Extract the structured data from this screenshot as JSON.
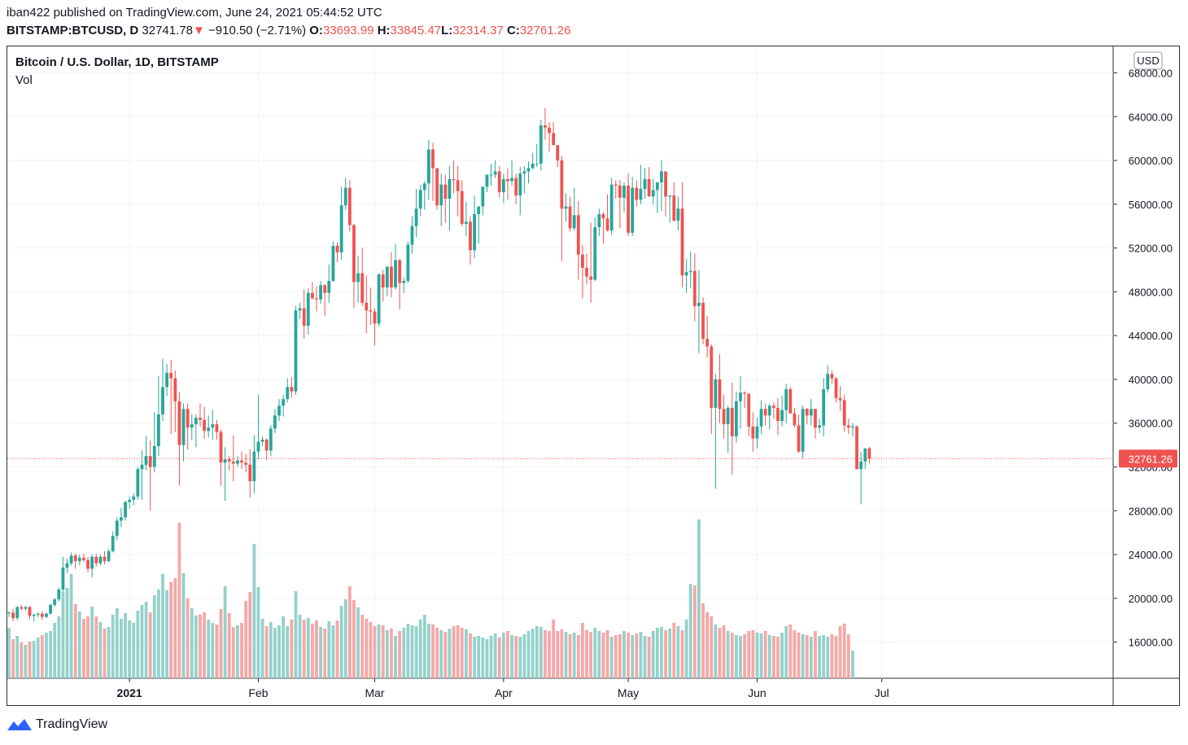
{
  "header": {
    "publisher": "iban422",
    "published_text": "published on TradingView.com, June 24, 2021 05:44:52 UTC",
    "symbol": "BITSTAMP:BTCUSD, D",
    "last": "32741.78",
    "change_arrow": "▼",
    "change": "−910.50 (−2.71%)",
    "o_label": "O:",
    "o": "33693.99",
    "h_label": "H:",
    "h": "33845.47",
    "l_label": "L:",
    "l": "32314.37",
    "c_label": "C:",
    "c": "32761.26"
  },
  "chart_data": {
    "type": "candlestick",
    "title": "Bitcoin / U.S. Dollar, 1D, BITSTAMP",
    "volume_label": "Vol",
    "currency": "USD",
    "ylim": [
      12500,
      69500
    ],
    "y_ticks": [
      "68000.00",
      "64000.00",
      "60000.00",
      "56000.00",
      "52000.00",
      "48000.00",
      "44000.00",
      "40000.00",
      "36000.00",
      "32000.00",
      "28000.00",
      "24000.00",
      "20000.00",
      "16000.00"
    ],
    "x_ticks": [
      "2021",
      "Feb",
      "Mar",
      "Apr",
      "May",
      "Jun",
      "Jul"
    ],
    "last_price_label": "32761.26",
    "last_price": 32761.26,
    "series_start": "2020-12-03",
    "candles": [
      [
        18650,
        18800,
        18300,
        18700
      ],
      [
        18700,
        19000,
        17900,
        18200
      ],
      [
        18200,
        19300,
        18000,
        19200
      ],
      [
        19200,
        19400,
        18900,
        19050
      ],
      [
        19050,
        19300,
        18900,
        19200
      ],
      [
        19200,
        19300,
        18100,
        18400
      ],
      [
        18400,
        18600,
        17900,
        18500
      ],
      [
        18500,
        18700,
        18300,
        18600
      ],
      [
        18600,
        18800,
        18000,
        18300
      ],
      [
        18300,
        18700,
        18200,
        18600
      ],
      [
        18600,
        19500,
        18500,
        19400
      ],
      [
        19400,
        20000,
        19200,
        19900
      ],
      [
        19900,
        21000,
        19700,
        20800
      ],
      [
        20800,
        23800,
        20600,
        22800
      ],
      [
        22800,
        23600,
        22300,
        23200
      ],
      [
        23200,
        24200,
        23000,
        23900
      ],
      [
        23900,
        24100,
        22700,
        23400
      ],
      [
        23400,
        24000,
        23000,
        23700
      ],
      [
        23700,
        24100,
        23300,
        23500
      ],
      [
        23500,
        23800,
        22400,
        22700
      ],
      [
        22700,
        24000,
        21900,
        23800
      ],
      [
        23800,
        24100,
        22900,
        23200
      ],
      [
        23200,
        24000,
        23000,
        23800
      ],
      [
        23800,
        24300,
        23100,
        23400
      ],
      [
        23400,
        24500,
        23300,
        24300
      ],
      [
        24300,
        26100,
        24200,
        25700
      ],
      [
        25700,
        27400,
        25300,
        27100
      ],
      [
        27100,
        28300,
        26500,
        27400
      ],
      [
        27400,
        28900,
        27100,
        28800
      ],
      [
        28800,
        29300,
        28200,
        29000
      ],
      [
        29000,
        29600,
        28500,
        29300
      ],
      [
        29300,
        32000,
        29000,
        31800
      ],
      [
        31800,
        33500,
        29000,
        32200
      ],
      [
        32200,
        34800,
        31700,
        33000
      ],
      [
        33000,
        34400,
        28000,
        32000
      ],
      [
        32000,
        37000,
        31500,
        33900
      ],
      [
        33900,
        40300,
        33000,
        36800
      ],
      [
        36800,
        41900,
        36200,
        39300
      ],
      [
        39300,
        41400,
        38500,
        40600
      ],
      [
        40600,
        41800,
        35000,
        40100
      ],
      [
        40100,
        40800,
        35200,
        38000
      ],
      [
        38000,
        38800,
        30300,
        34000
      ],
      [
        34000,
        37800,
        32500,
        37300
      ],
      [
        37300,
        37800,
        33600,
        35600
      ],
      [
        35600,
        36800,
        34500,
        35900
      ],
      [
        35900,
        36800,
        33800,
        36500
      ],
      [
        36500,
        37800,
        35700,
        36300
      ],
      [
        36300,
        37500,
        34600,
        35300
      ],
      [
        35300,
        36700,
        34700,
        35600
      ],
      [
        35600,
        37200,
        34500,
        35900
      ],
      [
        35900,
        36300,
        34500,
        35200
      ],
      [
        35200,
        35400,
        30300,
        32400
      ],
      [
        32400,
        33800,
        28900,
        32700
      ],
      [
        32700,
        33000,
        31700,
        32500
      ],
      [
        32500,
        34900,
        30700,
        32300
      ],
      [
        32300,
        33000,
        32000,
        32600
      ],
      [
        32600,
        33400,
        31800,
        32400
      ],
      [
        32400,
        33200,
        31500,
        32200
      ],
      [
        32200,
        33600,
        29200,
        30700
      ],
      [
        30700,
        34900,
        29600,
        33400
      ],
      [
        33400,
        38600,
        32700,
        34300
      ],
      [
        34300,
        34800,
        33900,
        34500
      ],
      [
        34500,
        34600,
        32600,
        33500
      ],
      [
        33500,
        35800,
        33000,
        35500
      ],
      [
        35500,
        37300,
        35100,
        36700
      ],
      [
        36700,
        38200,
        36200,
        37600
      ],
      [
        37600,
        38600,
        36600,
        38200
      ],
      [
        38200,
        40100,
        37900,
        39300
      ],
      [
        39300,
        40200,
        38300,
        38900
      ],
      [
        38900,
        46700,
        38600,
        46300
      ],
      [
        46300,
        47000,
        45500,
        46500
      ],
      [
        46500,
        48200,
        43700,
        44900
      ],
      [
        44900,
        48300,
        44100,
        47900
      ],
      [
        47900,
        48900,
        47300,
        47400
      ],
      [
        47400,
        48500,
        46200,
        47300
      ],
      [
        47300,
        49000,
        46900,
        48600
      ],
      [
        48600,
        48700,
        45800,
        47900
      ],
      [
        47900,
        50500,
        47000,
        49000
      ],
      [
        49000,
        52600,
        48900,
        52200
      ],
      [
        52200,
        52500,
        50700,
        51600
      ],
      [
        51600,
        57600,
        50900,
        55900
      ],
      [
        55900,
        58400,
        55500,
        57500
      ],
      [
        57500,
        58200,
        53500,
        54100
      ],
      [
        54100,
        54200,
        46500,
        48900
      ],
      [
        48900,
        51300,
        47000,
        49700
      ],
      [
        49700,
        52000,
        46700,
        47000
      ],
      [
        47000,
        49500,
        44200,
        46300
      ],
      [
        46300,
        48400,
        45000,
        46200
      ],
      [
        46200,
        46500,
        43100,
        45100
      ],
      [
        45100,
        49700,
        44800,
        49600
      ],
      [
        49600,
        50000,
        47100,
        48400
      ],
      [
        48400,
        50300,
        47600,
        50300
      ],
      [
        50300,
        51600,
        47500,
        48400
      ],
      [
        48400,
        52400,
        48200,
        50900
      ],
      [
        50900,
        51000,
        46400,
        48800
      ],
      [
        48800,
        49300,
        47900,
        49000
      ],
      [
        49000,
        52600,
        48800,
        52300
      ],
      [
        52300,
        54900,
        51500,
        54000
      ],
      [
        54000,
        57400,
        53000,
        55600
      ],
      [
        55600,
        57800,
        54900,
        57300
      ],
      [
        57300,
        58100,
        55500,
        57900
      ],
      [
        57900,
        61900,
        56400,
        61000
      ],
      [
        61000,
        61600,
        56300,
        59300
      ],
      [
        59300,
        59300,
        55500,
        55900
      ],
      [
        55900,
        58800,
        54000,
        57800
      ],
      [
        57800,
        58700,
        54300,
        56500
      ],
      [
        56500,
        59500,
        53600,
        58300
      ],
      [
        58300,
        60000,
        57000,
        58200
      ],
      [
        58200,
        59500,
        54900,
        57200
      ],
      [
        57200,
        58200,
        54000,
        54200
      ],
      [
        54200,
        56200,
        53100,
        54400
      ],
      [
        54400,
        54900,
        50500,
        51800
      ],
      [
        51800,
        56800,
        51100,
        55100
      ],
      [
        55100,
        55800,
        52400,
        55800
      ],
      [
        55800,
        57300,
        55000,
        57600
      ],
      [
        57600,
        58600,
        57100,
        58700
      ],
      [
        58700,
        59700,
        57700,
        58700
      ],
      [
        58700,
        60000,
        58400,
        59000
      ],
      [
        59000,
        59500,
        56600,
        57100
      ],
      [
        57100,
        58800,
        56100,
        58300
      ],
      [
        58300,
        59300,
        56400,
        58100
      ],
      [
        58100,
        60000,
        57700,
        58400
      ],
      [
        58400,
        58800,
        56000,
        56800
      ],
      [
        56800,
        59400,
        55000,
        58800
      ],
      [
        58800,
        59500,
        57000,
        59000
      ],
      [
        59000,
        59900,
        57900,
        59300
      ],
      [
        59300,
        60700,
        59200,
        59700
      ],
      [
        59700,
        61500,
        59400,
        59700
      ],
      [
        59700,
        63700,
        59100,
        63200
      ],
      [
        63200,
        64800,
        61900,
        63000
      ],
      [
        63000,
        63500,
        60800,
        62500
      ],
      [
        62500,
        63500,
        61400,
        61400
      ],
      [
        61400,
        61400,
        59400,
        60000
      ],
      [
        60000,
        60400,
        50800,
        55600
      ],
      [
        55600,
        57000,
        54400,
        55800
      ],
      [
        55800,
        56700,
        53500,
        53800
      ],
      [
        53800,
        57500,
        53600,
        55000
      ],
      [
        55000,
        56300,
        49100,
        51400
      ],
      [
        51400,
        52300,
        47400,
        50200
      ],
      [
        50200,
        51500,
        48700,
        49400
      ],
      [
        49400,
        54300,
        47000,
        49100
      ],
      [
        49100,
        54800,
        49000,
        53900
      ],
      [
        53900,
        55600,
        53100,
        55100
      ],
      [
        55100,
        55300,
        52400,
        54700
      ],
      [
        54700,
        56900,
        53500,
        53600
      ],
      [
        53600,
        58400,
        53200,
        57800
      ],
      [
        57800,
        58200,
        56500,
        57700
      ],
      [
        57700,
        58200,
        53800,
        56600
      ],
      [
        56600,
        58000,
        55300,
        57700
      ],
      [
        57700,
        58800,
        53100,
        53400
      ],
      [
        53400,
        58500,
        53100,
        57500
      ],
      [
        57500,
        58200,
        55800,
        56400
      ],
      [
        56400,
        59600,
        56000,
        57400
      ],
      [
        57400,
        59300,
        56500,
        58300
      ],
      [
        58300,
        59400,
        56700,
        56700
      ],
      [
        56700,
        58300,
        56000,
        57300
      ],
      [
        57300,
        58000,
        55200,
        58000
      ],
      [
        58000,
        60000,
        55400,
        59000
      ],
      [
        59000,
        59000,
        54900,
        56700
      ],
      [
        56700,
        56800,
        54300,
        56800
      ],
      [
        56800,
        58000,
        54400,
        54500
      ],
      [
        54500,
        56700,
        53600,
        55600
      ],
      [
        55600,
        58000,
        48400,
        49500
      ],
      [
        49500,
        51000,
        47900,
        49800
      ],
      [
        49800,
        51700,
        48300,
        49900
      ],
      [
        49900,
        51500,
        45300,
        46700
      ],
      [
        46700,
        50000,
        42400,
        47000
      ],
      [
        47000,
        47500,
        43200,
        43700
      ],
      [
        43700,
        45800,
        42000,
        43000
      ],
      [
        43000,
        43200,
        35000,
        37400
      ],
      [
        37400,
        40500,
        30000,
        40000
      ],
      [
        40000,
        42300,
        36000,
        37300
      ],
      [
        37300,
        38600,
        34600,
        35900
      ],
      [
        35900,
        37600,
        33300,
        37400
      ],
      [
        37400,
        39700,
        31300,
        34800
      ],
      [
        34800,
        38900,
        34200,
        38000
      ],
      [
        38000,
        40300,
        35500,
        38800
      ],
      [
        38800,
        38900,
        37400,
        38700
      ],
      [
        38700,
        38700,
        34800,
        35700
      ],
      [
        35700,
        37000,
        33400,
        34600
      ],
      [
        34600,
        36500,
        33700,
        35700
      ],
      [
        35700,
        38100,
        35000,
        37300
      ],
      [
        37300,
        37800,
        35800,
        36700
      ],
      [
        36700,
        37800,
        35400,
        37600
      ],
      [
        37600,
        37900,
        36400,
        37400
      ],
      [
        37400,
        38300,
        34900,
        36200
      ],
      [
        36200,
        38500,
        35700,
        37200
      ],
      [
        37200,
        39600,
        36000,
        39100
      ],
      [
        39100,
        39300,
        36900,
        36900
      ],
      [
        36900,
        37400,
        35600,
        35800
      ],
      [
        35800,
        36800,
        33300,
        33400
      ],
      [
        33400,
        37600,
        32800,
        37300
      ],
      [
        37300,
        37400,
        35900,
        36700
      ],
      [
        36700,
        38200,
        35800,
        37300
      ],
      [
        37300,
        37300,
        34600,
        35600
      ],
      [
        35600,
        36400,
        35100,
        35800
      ],
      [
        35800,
        40100,
        34800,
        39100
      ],
      [
        39100,
        41300,
        38800,
        40500
      ],
      [
        40500,
        40800,
        39600,
        40100
      ],
      [
        40100,
        40200,
        37900,
        38300
      ],
      [
        38300,
        39400,
        37100,
        38100
      ],
      [
        38100,
        38600,
        35200,
        35800
      ],
      [
        35800,
        36400,
        35000,
        35600
      ],
      [
        35600,
        36000,
        34800,
        35700
      ],
      [
        35700,
        35800,
        31800,
        31800
      ],
      [
        31800,
        33400,
        28600,
        32500
      ],
      [
        32500,
        33400,
        31800,
        33700
      ],
      [
        33700,
        33850,
        32300,
        32760
      ]
    ],
    "volumes": [
      6200,
      4800,
      5200,
      4400,
      4100,
      4500,
      4600,
      5000,
      5300,
      5600,
      5800,
      6800,
      7600,
      10600,
      11100,
      12800,
      9100,
      8200,
      7300,
      7600,
      8800,
      7600,
      6900,
      6100,
      6300,
      7800,
      8600,
      7300,
      8000,
      7100,
      6800,
      8300,
      9000,
      9400,
      8100,
      10200,
      10900,
      12800,
      10800,
      11800,
      12300,
      19100,
      12900,
      9800,
      8600,
      7700,
      7800,
      8100,
      7200,
      6800,
      6600,
      8500,
      11300,
      8000,
      6300,
      6500,
      6800,
      9500,
      10600,
      16500,
      11200,
      7300,
      6400,
      6900,
      6200,
      6500,
      7600,
      6400,
      7200,
      10700,
      7800,
      7200,
      7400,
      6700,
      7100,
      6300,
      6100,
      7000,
      6500,
      7100,
      8900,
      9700,
      11300,
      9600,
      8700,
      7800,
      7300,
      6900,
      6400,
      6600,
      6500,
      5900,
      6100,
      5200,
      5800,
      6200,
      6700,
      6500,
      6400,
      7200,
      7800,
      6700,
      6600,
      6200,
      5900,
      5700,
      6100,
      6400,
      6500,
      6200,
      6000,
      5500,
      5100,
      5200,
      5000,
      4800,
      5200,
      5500,
      5000,
      5600,
      5800,
      5300,
      5200,
      5100,
      5400,
      5800,
      6100,
      6400,
      6300,
      5900,
      5800,
      7200,
      5800,
      6000,
      5700,
      5400,
      5600,
      5300,
      6800,
      5900,
      5700,
      6200,
      5800,
      5600,
      5900,
      5100,
      5300,
      5400,
      5800,
      5600,
      5300,
      5500,
      5700,
      5200,
      5100,
      5800,
      6200,
      6300,
      5900,
      6100,
      6800,
      6400,
      5900,
      7200,
      11600,
      11400,
      19500,
      9200,
      8100,
      7600,
      6600,
      6200,
      6500,
      5800,
      5600,
      5300,
      5200,
      5400,
      5800,
      5900,
      5600,
      5500,
      5800,
      5300,
      5200,
      5100,
      5600,
      6400,
      6600,
      5900,
      5600,
      5400,
      5300,
      5100,
      5800,
      5200,
      5300,
      5100,
      5400,
      5200,
      6400,
      6700,
      5400,
      3400
    ],
    "up_color": "#26a69a",
    "down_color": "#ef5350",
    "up_volume_color": "#94d1ca",
    "down_volume_color": "#f5a7a7"
  },
  "footer": {
    "brand": "TradingView"
  }
}
